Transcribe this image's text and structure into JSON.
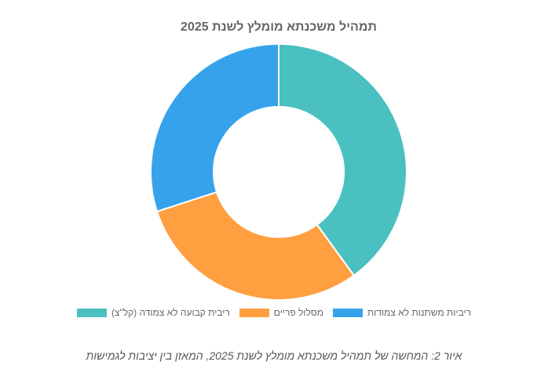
{
  "chart_data": {
    "type": "doughnut",
    "title": "תמהיל משכנתא מומלץ לשנת 2025",
    "categories": [
      "ריבית קבועה לא צמודה (קל\"צ)",
      "מסלול פריים",
      "ריביות משתנות לא צמודות"
    ],
    "values": [
      40,
      30,
      30
    ],
    "colors": [
      "#4bc0c0",
      "#ff9f40",
      "#36a2eb"
    ],
    "caption": "איור 2: המחשה של תמהיל משכנתא מומלץ לשנת 2025, המאזן בין יציבות לגמישות"
  }
}
